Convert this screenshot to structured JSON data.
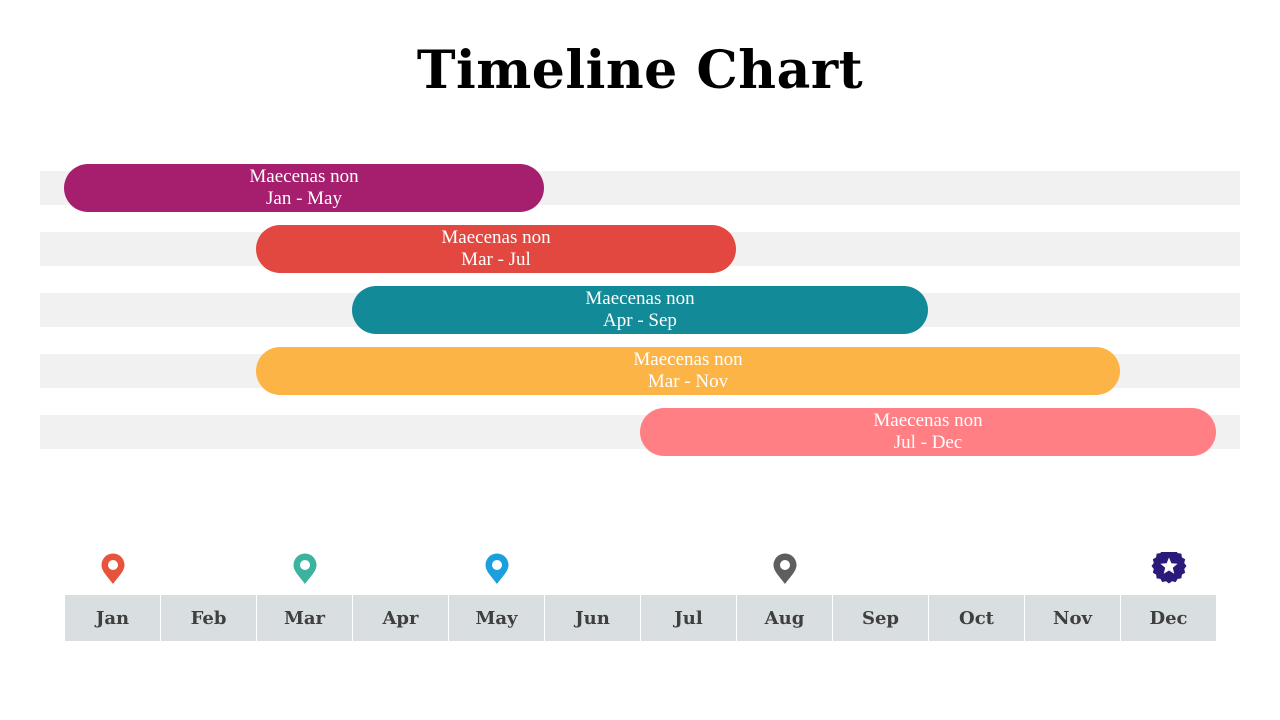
{
  "title": "Timeline Chart",
  "chart_data": {
    "type": "gantt",
    "title": "Timeline Chart",
    "categories": [
      "Jan",
      "Feb",
      "Mar",
      "Apr",
      "May",
      "Jun",
      "Jul",
      "Aug",
      "Sep",
      "Oct",
      "Nov",
      "Dec"
    ],
    "tasks": [
      {
        "label": "Maecenas non",
        "range_label": "Jan - May",
        "start": "Jan",
        "end": "May",
        "color": "#a61e6e"
      },
      {
        "label": "Maecenas non",
        "range_label": "Mar - Jul",
        "start": "Mar",
        "end": "Jul",
        "color": "#e2483f"
      },
      {
        "label": "Maecenas non",
        "range_label": "Apr - Sep",
        "start": "Apr",
        "end": "Sep",
        "color": "#138a98"
      },
      {
        "label": "Maecenas non",
        "range_label": "Mar - Nov",
        "start": "Mar",
        "end": "Nov",
        "color": "#fdb446"
      },
      {
        "label": "Maecenas non",
        "range_label": "Jul - Dec",
        "start": "Jul",
        "end": "Dec",
        "color": "#ff7f85"
      }
    ],
    "markers": [
      {
        "month": "Jan",
        "icon": "location-pin-icon",
        "color": "#e8533e"
      },
      {
        "month": "Mar",
        "icon": "location-pin-icon",
        "color": "#3bb39e"
      },
      {
        "month": "May",
        "icon": "location-pin-icon",
        "color": "#1aa0dc"
      },
      {
        "month": "Aug",
        "icon": "location-pin-icon",
        "color": "#5e5e5e"
      },
      {
        "month": "Dec",
        "icon": "star-badge-icon",
        "color": "#2b1a7a"
      }
    ]
  }
}
